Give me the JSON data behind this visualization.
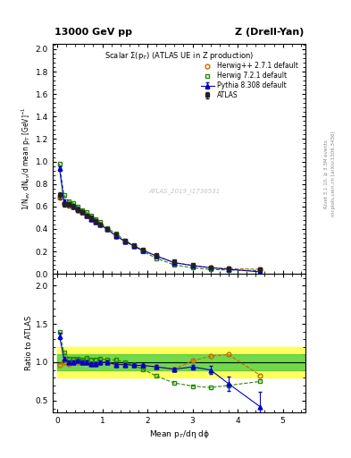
{
  "title_left": "13000 GeV pp",
  "title_right": "Z (Drell-Yan)",
  "right_label_top": "Rivet 3.1.10, ≥ 3.3M events",
  "right_label_bottom": "mcplots.cern.ch [arXiv:1306.3436]",
  "plot_title": "Scalar Σ(p$_T$) (ATLAS UE in Z production)",
  "watermark": "ATLAS_2019_I1736531",
  "xlabel": "Mean p$_T$/dη dϕ",
  "ylabel_main": "1/N$_{ev}$ dN$_{ev}$/d mean p$_T$ [GeV]$^{-1}$",
  "ylabel_ratio": "Ratio to ATLAS",
  "xlim": [
    -0.1,
    5.5
  ],
  "ylim_main": [
    0.0,
    2.05
  ],
  "ylim_ratio": [
    0.35,
    2.15
  ],
  "atlas_x": [
    0.05,
    0.15,
    0.25,
    0.35,
    0.45,
    0.55,
    0.65,
    0.75,
    0.85,
    0.95,
    1.1,
    1.3,
    1.5,
    1.7,
    1.9,
    2.2,
    2.6,
    3.0,
    3.4,
    3.8,
    4.5
  ],
  "atlas_y": [
    0.7,
    0.62,
    0.62,
    0.6,
    0.57,
    0.55,
    0.52,
    0.5,
    0.47,
    0.44,
    0.4,
    0.35,
    0.3,
    0.26,
    0.22,
    0.17,
    0.11,
    0.08,
    0.06,
    0.05,
    0.04
  ],
  "atlas_yerr": [
    0.03,
    0.02,
    0.02,
    0.02,
    0.02,
    0.015,
    0.015,
    0.015,
    0.015,
    0.012,
    0.01,
    0.01,
    0.008,
    0.007,
    0.006,
    0.005,
    0.004,
    0.003,
    0.002,
    0.002,
    0.002
  ],
  "herwig_x": [
    0.05,
    0.15,
    0.25,
    0.35,
    0.45,
    0.55,
    0.65,
    0.75,
    0.85,
    0.95,
    1.1,
    1.3,
    1.5,
    1.7,
    1.9,
    2.2,
    2.6,
    3.0,
    3.4,
    3.8,
    4.5
  ],
  "herwig_y": [
    0.68,
    0.62,
    0.61,
    0.6,
    0.57,
    0.55,
    0.52,
    0.49,
    0.46,
    0.44,
    0.4,
    0.34,
    0.29,
    0.25,
    0.21,
    0.16,
    0.1,
    0.075,
    0.057,
    0.048,
    0.042
  ],
  "herwig72_x": [
    0.05,
    0.15,
    0.25,
    0.35,
    0.45,
    0.55,
    0.65,
    0.75,
    0.85,
    0.95,
    1.1,
    1.3,
    1.5,
    1.7,
    1.9,
    2.2,
    2.6,
    3.0,
    3.4,
    3.8,
    4.5
  ],
  "herwig72_y": [
    0.98,
    0.7,
    0.65,
    0.63,
    0.6,
    0.57,
    0.55,
    0.52,
    0.49,
    0.46,
    0.41,
    0.36,
    0.3,
    0.25,
    0.2,
    0.14,
    0.08,
    0.055,
    0.04,
    0.035,
    0.03
  ],
  "pythia_x": [
    0.05,
    0.15,
    0.25,
    0.35,
    0.45,
    0.55,
    0.65,
    0.75,
    0.85,
    0.95,
    1.1,
    1.3,
    1.5,
    1.7,
    1.9,
    2.2,
    2.6,
    3.0,
    3.4,
    3.8,
    4.5
  ],
  "pythia_y": [
    0.94,
    0.65,
    0.62,
    0.6,
    0.58,
    0.55,
    0.52,
    0.49,
    0.46,
    0.44,
    0.4,
    0.34,
    0.29,
    0.25,
    0.21,
    0.16,
    0.1,
    0.075,
    0.055,
    0.042,
    0.018
  ],
  "pythia_yerr": [
    0.02,
    0.01,
    0.01,
    0.01,
    0.01,
    0.01,
    0.01,
    0.01,
    0.01,
    0.01,
    0.008,
    0.007,
    0.006,
    0.005,
    0.005,
    0.004,
    0.003,
    0.003,
    0.003,
    0.003,
    0.004
  ],
  "ratio_herwig_x": [
    0.05,
    0.15,
    0.25,
    0.35,
    0.45,
    0.55,
    0.65,
    0.75,
    0.85,
    0.95,
    1.1,
    1.3,
    1.5,
    1.7,
    1.9,
    2.2,
    2.6,
    3.0,
    3.4,
    3.8,
    4.5
  ],
  "ratio_herwig_y": [
    0.97,
    1.0,
    0.98,
    1.0,
    1.0,
    1.0,
    1.0,
    0.98,
    0.98,
    1.0,
    1.0,
    0.97,
    0.97,
    0.96,
    0.955,
    0.94,
    0.91,
    1.02,
    1.08,
    1.1,
    0.83
  ],
  "ratio_herwig72_x": [
    0.05,
    0.15,
    0.25,
    0.35,
    0.45,
    0.55,
    0.65,
    0.75,
    0.85,
    0.95,
    1.1,
    1.3,
    1.5,
    1.7,
    1.9,
    2.2,
    2.6,
    3.0,
    3.4,
    3.8,
    4.5
  ],
  "ratio_herwig72_y": [
    1.4,
    1.13,
    1.05,
    1.05,
    1.05,
    1.04,
    1.06,
    1.04,
    1.04,
    1.05,
    1.03,
    1.03,
    1.0,
    0.96,
    0.91,
    0.82,
    0.73,
    0.69,
    0.67,
    0.7,
    0.75
  ],
  "ratio_pythia_x": [
    0.05,
    0.15,
    0.25,
    0.35,
    0.45,
    0.55,
    0.65,
    0.75,
    0.85,
    0.95,
    1.1,
    1.3,
    1.5,
    1.7,
    1.9,
    2.2,
    2.6,
    3.0,
    3.4,
    3.8,
    4.5
  ],
  "ratio_pythia_y": [
    1.34,
    1.05,
    1.0,
    1.0,
    1.02,
    1.0,
    1.0,
    0.98,
    0.98,
    1.0,
    1.0,
    0.97,
    0.97,
    0.96,
    0.96,
    0.94,
    0.91,
    0.94,
    0.9,
    0.72,
    0.42
  ],
  "ratio_pythia_yerr": [
    0.04,
    0.02,
    0.02,
    0.02,
    0.02,
    0.02,
    0.02,
    0.02,
    0.02,
    0.02,
    0.02,
    0.02,
    0.02,
    0.02,
    0.02,
    0.02,
    0.025,
    0.03,
    0.055,
    0.09,
    0.2
  ],
  "band_x": [
    0.0,
    0.5,
    1.0,
    1.5,
    2.0,
    2.5,
    3.0,
    3.5,
    4.0,
    4.5,
    5.0,
    5.5
  ],
  "band_yellow_y1": [
    0.8,
    0.8,
    0.8,
    0.8,
    0.8,
    0.8,
    0.8,
    0.8,
    0.8,
    0.8,
    0.8,
    0.8
  ],
  "band_yellow_y2": [
    1.2,
    1.2,
    1.2,
    1.2,
    1.2,
    1.2,
    1.2,
    1.2,
    1.2,
    1.2,
    1.2,
    1.2
  ],
  "band_green_y1": [
    0.9,
    0.9,
    0.9,
    0.9,
    0.9,
    0.9,
    0.9,
    0.9,
    0.9,
    0.9,
    0.9,
    0.9
  ],
  "band_green_y2": [
    1.1,
    1.1,
    1.1,
    1.1,
    1.1,
    1.1,
    1.1,
    1.1,
    1.1,
    1.1,
    1.1,
    1.1
  ],
  "color_atlas": "#222222",
  "color_herwig": "#cc6600",
  "color_herwig72": "#228800",
  "color_pythia": "#0000cc",
  "color_band_yellow": "#ffff44",
  "color_band_green": "#44cc44",
  "yticks_main": [
    0.0,
    0.2,
    0.4,
    0.6,
    0.8,
    1.0,
    1.2,
    1.4,
    1.6,
    1.8,
    2.0
  ],
  "yticks_ratio": [
    0.5,
    1.0,
    1.5,
    2.0
  ],
  "xticks": [
    0,
    1,
    2,
    3,
    4,
    5
  ]
}
